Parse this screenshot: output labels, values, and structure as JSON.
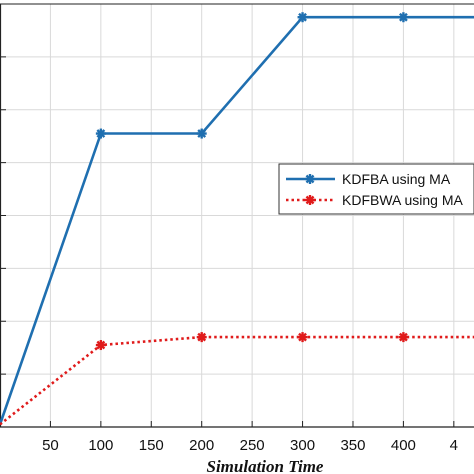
{
  "chart_data": {
    "type": "line",
    "title": "",
    "xlabel": "Simulation Time",
    "ylabel": "",
    "x_ticks": [
      "50",
      "100",
      "150",
      "200",
      "250",
      "300",
      "350",
      "400",
      "4"
    ],
    "xlim": [
      0,
      470
    ],
    "ylim": [
      0,
      8
    ],
    "grid": true,
    "legend_position": "right",
    "series": [
      {
        "name": "KDFBA using MA",
        "color": "#1f6fb0",
        "style": "solid",
        "marker": "star",
        "x": [
          0,
          100,
          200,
          300,
          400,
          470
        ],
        "y": [
          0.05,
          5.55,
          5.55,
          7.75,
          7.75,
          7.75
        ]
      },
      {
        "name": "KDFBWA using MA",
        "color": "#e01b1b",
        "style": "dotted",
        "marker": "star",
        "x": [
          0,
          100,
          200,
          300,
          400,
          470
        ],
        "y": [
          0.05,
          1.55,
          1.7,
          1.7,
          1.7,
          1.7
        ]
      }
    ]
  }
}
